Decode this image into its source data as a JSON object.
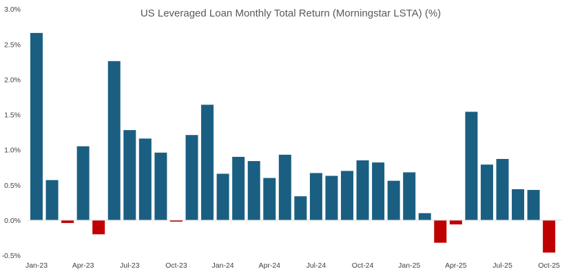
{
  "chart_data": {
    "type": "bar",
    "title": "US Leveraged Loan Monthly Total Return (Morningstar LSTA) (%)",
    "xlabel": "",
    "ylabel": "",
    "ylim": [
      -0.5,
      3.0
    ],
    "yticks": [
      "3.0%",
      "2.5%",
      "2.0%",
      "1.5%",
      "1.0%",
      "0.5%",
      "0.0%",
      "-0.5%"
    ],
    "ytick_values": [
      3.0,
      2.5,
      2.0,
      1.5,
      1.0,
      0.5,
      0.0,
      -0.5
    ],
    "grid": false,
    "categories": [
      "Jan-23",
      "Feb-23",
      "Mar-23",
      "Apr-23",
      "May-23",
      "Jun-23",
      "Jul-23",
      "Aug-23",
      "Sep-23",
      "Oct-23",
      "Nov-23",
      "Dec-23",
      "Jan-24",
      "Feb-24",
      "Mar-24",
      "Apr-24",
      "May-24",
      "Jun-24",
      "Jul-24",
      "Aug-24",
      "Sep-24",
      "Oct-24",
      "Nov-24",
      "Dec-24",
      "Jan-25",
      "Feb-25",
      "Mar-25",
      "Apr-25",
      "May-25",
      "Jun-25",
      "Jul-25",
      "Aug-25",
      "Sep-25",
      "Oct-25"
    ],
    "xtick_labels_shown": [
      "Jan-23",
      "Apr-23",
      "Jul-23",
      "Oct-23",
      "Jan-24",
      "Apr-24",
      "Jul-24",
      "Oct-24",
      "Jan-25",
      "Apr-25",
      "Jul-25",
      "Oct-25"
    ],
    "values": [
      2.66,
      0.57,
      -0.04,
      1.05,
      -0.2,
      2.26,
      1.28,
      1.16,
      0.96,
      -0.02,
      1.21,
      1.64,
      0.66,
      0.9,
      0.84,
      0.6,
      0.93,
      0.34,
      0.67,
      0.63,
      0.7,
      0.85,
      0.82,
      0.56,
      0.68,
      0.1,
      -0.32,
      -0.06,
      1.54,
      0.79,
      0.87,
      0.44,
      0.43,
      -0.46
    ],
    "colors": {
      "positive": "#1a5f82",
      "negative": "#c00000",
      "axis": "#d9d9d9"
    }
  }
}
